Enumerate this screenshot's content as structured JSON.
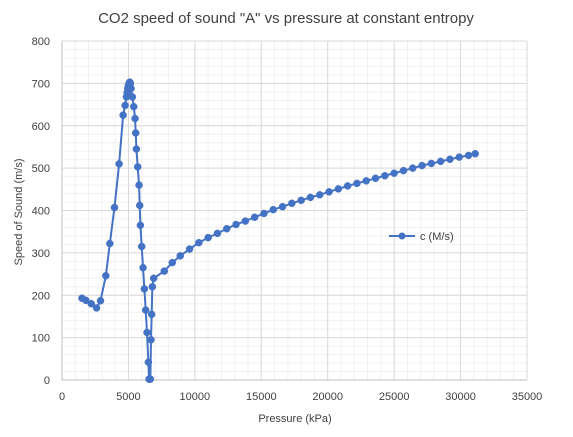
{
  "chart_data": {
    "type": "scatter",
    "title": "CO2 speed of sound \"A\" vs pressure at constant entropy",
    "xlabel": "Pressure (kPa)",
    "ylabel": "Speed of Sound (m/s)",
    "xlim": [
      0,
      35000
    ],
    "ylim": [
      0,
      800
    ],
    "x_ticks": [
      "0",
      "5000",
      "10000",
      "15000",
      "20000",
      "25000",
      "30000",
      "35000"
    ],
    "y_ticks": [
      "0",
      "100",
      "200",
      "300",
      "400",
      "500",
      "600",
      "700",
      "800"
    ],
    "grid": true,
    "minor_grid": true,
    "legend_position": "right",
    "color": "#4472C4",
    "series": [
      {
        "name": "c (M/s)",
        "x": [
          1500,
          1800,
          2200,
          2600,
          2900,
          3300,
          3600,
          3950,
          4300,
          4600,
          4750,
          4850,
          4900,
          4950,
          5000,
          5050,
          5100,
          5150,
          5200,
          5300,
          5400,
          5500,
          5550,
          5600,
          5700,
          5800,
          5850,
          5900,
          6000,
          6100,
          6200,
          6300,
          6400,
          6500,
          6550,
          6600,
          6650,
          6700,
          6750,
          6800,
          6900,
          7700,
          8300,
          8900,
          9600,
          10300,
          11000,
          11700,
          12400,
          13100,
          13800,
          14500,
          15200,
          15900,
          16600,
          17300,
          18000,
          18700,
          19400,
          20100,
          20800,
          21500,
          22200,
          22900,
          23600,
          24300,
          25000,
          25700,
          26400,
          27100,
          27800,
          28500,
          29200,
          29900,
          30600,
          31100
        ],
        "y": [
          193,
          188,
          180,
          170,
          187,
          246,
          322,
          407,
          510,
          625,
          648,
          668,
          678,
          688,
          695,
          700,
          703,
          700,
          688,
          668,
          645,
          617,
          583,
          545,
          503,
          460,
          412,
          365,
          315,
          265,
          215,
          165,
          112,
          42,
          2,
          2,
          2,
          95,
          155,
          220,
          240,
          257,
          277,
          293,
          309,
          324,
          336,
          346,
          357,
          367,
          375,
          384,
          393,
          402,
          409,
          417,
          424,
          431,
          437,
          444,
          451,
          458,
          464,
          470,
          476,
          482,
          488,
          494,
          500,
          506,
          511,
          516,
          521,
          526,
          530,
          534
        ]
      }
    ]
  }
}
